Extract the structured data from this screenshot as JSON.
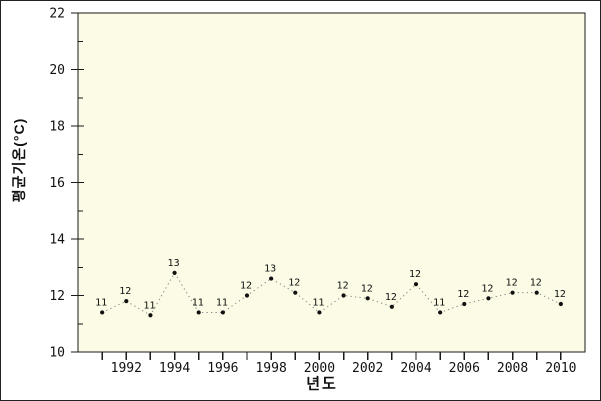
{
  "figure": {
    "background": "#ffffff",
    "border_color": "#222222"
  },
  "chart_data": {
    "type": "line",
    "title": "",
    "xlabel": "년도",
    "ylabel": "평균기온(°C)",
    "x": [
      1991,
      1992,
      1993,
      1994,
      1995,
      1996,
      1997,
      1998,
      1999,
      2000,
      2001,
      2002,
      2003,
      2004,
      2005,
      2006,
      2007,
      2008,
      2009,
      2010
    ],
    "values": [
      11.4,
      11.8,
      11.3,
      12.8,
      11.4,
      11.4,
      12.0,
      12.6,
      12.1,
      11.4,
      12.0,
      11.9,
      11.6,
      12.4,
      11.4,
      11.7,
      11.9,
      12.1,
      12.1,
      11.7
    ],
    "point_labels": [
      "11",
      "12",
      "11",
      "13",
      "11",
      "11",
      "12",
      "13",
      "12",
      "11",
      "12",
      "12",
      "12",
      "12",
      "11",
      "12",
      "12",
      "12",
      "12",
      "12"
    ],
    "xlim": [
      1990,
      2011
    ],
    "ylim": [
      10,
      22
    ],
    "x_major_ticks": [
      1992,
      1994,
      1996,
      1998,
      2000,
      2002,
      2004,
      2006,
      2008,
      2010
    ],
    "x_minor_ticks": [
      1991,
      1993,
      1995,
      1997,
      1999,
      2001,
      2003,
      2005,
      2007,
      2009,
      2011
    ],
    "y_major_ticks": [
      10,
      12,
      14,
      16,
      18,
      20,
      22
    ],
    "y_minor_ticks": [
      11,
      13,
      15,
      17,
      19,
      21
    ],
    "grid": false,
    "legend": "none",
    "line_style": "dotted",
    "marker": "filled-circle",
    "colors": {
      "plot_background": "#FBFBE6",
      "axis": "#1a1a1a",
      "line": "#888888",
      "marker": "#111111",
      "text": "#111111"
    }
  }
}
